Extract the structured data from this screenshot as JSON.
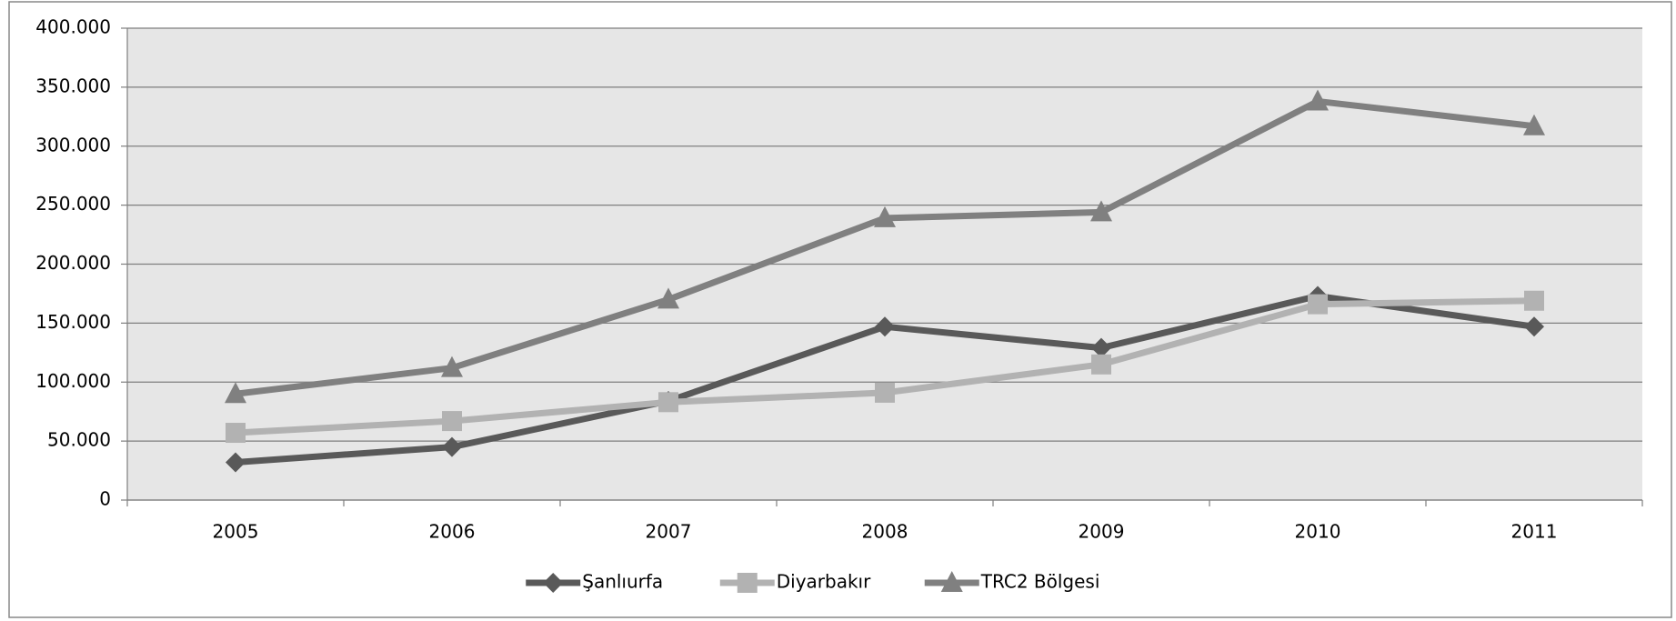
{
  "chart_data": {
    "type": "line",
    "categories": [
      "2005",
      "2006",
      "2007",
      "2008",
      "2009",
      "2010",
      "2011"
    ],
    "series": [
      {
        "name": "Şanlıurfa",
        "color": "#595959",
        "marker": "diamond",
        "values": [
          32000,
          45000,
          84000,
          147000,
          129000,
          173000,
          147000
        ]
      },
      {
        "name": "Diyarbakır",
        "color": "#b2b2b2",
        "marker": "square",
        "values": [
          57000,
          67000,
          83000,
          91000,
          115000,
          166000,
          169000
        ]
      },
      {
        "name": "TRC2 Bölgesi",
        "color": "#808080",
        "marker": "triangle",
        "values": [
          90000,
          112000,
          170000,
          239000,
          244000,
          338000,
          317000
        ]
      }
    ],
    "ylim": [
      0,
      400000
    ],
    "yticks": [
      0,
      {
        "value": 50000,
        "label": "50.000"
      },
      {
        "value": 100000,
        "label": "100.000"
      },
      {
        "value": 150000,
        "label": "150.000"
      },
      {
        "value": 200000,
        "label": "200.000"
      },
      {
        "value": 250000,
        "label": "250.000"
      },
      {
        "value": 300000,
        "label": "300.000"
      },
      {
        "value": 350000,
        "label": "350.000"
      },
      {
        "value": 400000,
        "label": "400.000"
      }
    ],
    "grid": true,
    "legend": "bottom"
  }
}
